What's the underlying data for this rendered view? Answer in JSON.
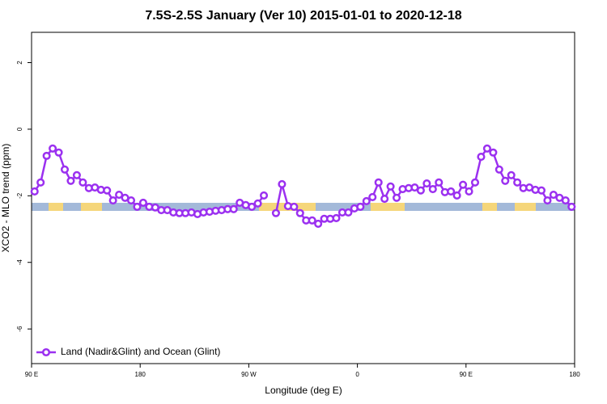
{
  "chart_data": {
    "type": "line",
    "title": "7.5S-2.5S January (Ver 10)   2015-01-01 to 2020-12-18",
    "xlabel": "Longitude (deg E)",
    "ylabel": "XCO2 - MLO trend (ppm)",
    "xlim": [
      90,
      540
    ],
    "xticks": [
      {
        "value": 90,
        "label": "90 E"
      },
      180,
      {
        "value": 270,
        "label": "90 W"
      },
      {
        "value": 360,
        "label": "0"
      },
      {
        "value": 450,
        "label": "90 E"
      },
      {
        "value": 540,
        "label": "180"
      }
    ],
    "ylim": [
      -7.04,
      2.91
    ],
    "yticks": [
      -6,
      -4,
      -2,
      0,
      2
    ],
    "grid": false,
    "legend": "bottom-left",
    "x": [
      92.5,
      97.5,
      102.5,
      107.5,
      112.5,
      117.5,
      122.5,
      127.5,
      132.5,
      137.5,
      142.5,
      147.5,
      152.5,
      157.5,
      162.5,
      167.5,
      172.5,
      177.5,
      182.5,
      187.5,
      192.5,
      197.5,
      202.5,
      207.5,
      212.5,
      217.5,
      222.5,
      227.5,
      232.5,
      237.5,
      242.5,
      247.5,
      252.5,
      257.5,
      262.5,
      267.5,
      272.5,
      277.5,
      282.5,
      287.5,
      292.5,
      297.5,
      302.5,
      307.5,
      312.5,
      317.5,
      322.5,
      327.5,
      332.5,
      337.5,
      342.5,
      347.5,
      352.5,
      357.5,
      362.5,
      367.5,
      372.5,
      377.5,
      382.5,
      387.5,
      392.5,
      397.5,
      402.5,
      407.5,
      412.5,
      417.5,
      422.5,
      427.5,
      432.5,
      437.5,
      442.5,
      447.5,
      452.5,
      457.5,
      462.5,
      467.5,
      472.5,
      477.5,
      482.5,
      487.5,
      492.5,
      497.5,
      502.5,
      507.5,
      512.5,
      517.5,
      522.5,
      527.5,
      532.5,
      537.5
    ],
    "series": [
      {
        "name": "Land (Nadir&Glint) and Ocean (Glint)",
        "color": "#9b30f0",
        "values": [
          -1.87,
          -1.6,
          -0.8,
          -0.58,
          -0.7,
          -1.21,
          -1.55,
          -1.38,
          -1.6,
          -1.77,
          -1.75,
          -1.82,
          -1.84,
          -2.14,
          -1.97,
          -2.06,
          -2.14,
          -2.33,
          -2.21,
          -2.33,
          -2.35,
          -2.43,
          -2.43,
          -2.5,
          -2.52,
          -2.52,
          -2.5,
          -2.55,
          -2.5,
          -2.48,
          -2.45,
          -2.43,
          -2.4,
          -2.4,
          -2.21,
          -2.28,
          -2.33,
          -2.23,
          -1.99,
          null,
          -2.52,
          -1.65,
          -2.31,
          -2.33,
          -2.52,
          -2.74,
          -2.74,
          -2.84,
          -2.69,
          -2.69,
          -2.67,
          -2.5,
          -2.5,
          -2.38,
          -2.33,
          -2.16,
          -2.04,
          -1.6,
          -2.09,
          -1.72,
          -2.06,
          -1.8,
          -1.77,
          -1.75,
          -1.84,
          -1.63,
          -1.8,
          -1.6,
          -1.89,
          -1.87,
          -1.99,
          -1.67,
          -1.87,
          -1.6,
          -0.83,
          -0.58,
          -0.7,
          -1.21,
          -1.55,
          -1.38,
          -1.6,
          -1.77,
          -1.75,
          -1.82,
          -1.84,
          -2.14,
          -1.97,
          -2.06,
          -2.14,
          -2.33
        ]
      }
    ]
  }
}
